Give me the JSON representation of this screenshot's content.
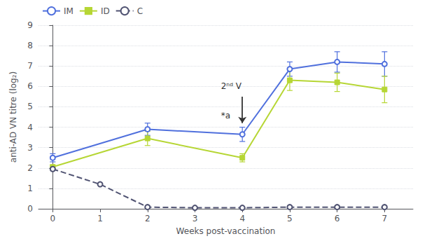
{
  "chart_data": {
    "type": "line",
    "xlabel": "Weeks post-vaccination",
    "ylabel": "anti-AD VN titre (log₂)",
    "xlim": [
      -0.3,
      7.6
    ],
    "ylim": [
      0,
      9
    ],
    "xticks": [
      0,
      1,
      2,
      3,
      4,
      5,
      6,
      7
    ],
    "yticks": [
      0,
      1,
      2,
      3,
      4,
      5,
      6,
      7,
      8,
      9
    ],
    "grid": true,
    "legend": "upper left",
    "series": [
      {
        "name": "IM",
        "x": [
          0,
          2,
          4,
          5,
          6,
          7
        ],
        "values": [
          2.5,
          3.9,
          3.65,
          6.85,
          7.2,
          7.1
        ],
        "errors": [
          0.2,
          0.3,
          0.35,
          0.35,
          0.5,
          0.6
        ],
        "marker": "circle_open",
        "line_style": "solid"
      },
      {
        "name": "ID",
        "x": [
          0,
          2,
          4,
          5,
          6,
          7
        ],
        "values": [
          2.05,
          3.45,
          2.5,
          6.3,
          6.2,
          5.85
        ],
        "errors": [
          0.1,
          0.35,
          0.2,
          0.5,
          0.45,
          0.65
        ],
        "marker": "square",
        "line_style": "solid"
      },
      {
        "name": "C",
        "x": [
          0,
          1,
          2,
          3,
          4,
          5,
          6,
          7
        ],
        "values": [
          1.95,
          1.2,
          0.08,
          0.05,
          0.05,
          0.08,
          0.08,
          0.08
        ],
        "errors": [
          0.0,
          0.0,
          0.0,
          0.0,
          0.0,
          0.0,
          0.0,
          0.0
        ],
        "marker": "circle_open",
        "line_style": "dashed"
      }
    ],
    "annotations": [
      {
        "text": "2ⁿᵈ V",
        "x": 3.55,
        "y": 5.8
      },
      {
        "text": "*a",
        "x": 3.55,
        "y": 4.35
      }
    ],
    "arrows": [
      {
        "x": 4.0,
        "y_start": 5.5,
        "y_end": 4.2
      }
    ]
  }
}
